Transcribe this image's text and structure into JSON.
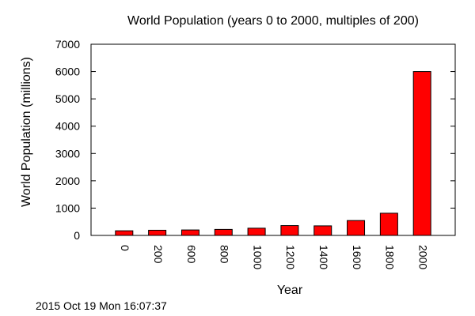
{
  "chart_data": {
    "type": "bar",
    "title": "World Population (years 0 to 2000, multiples of 200)",
    "xlabel": "Year",
    "ylabel": "World Population (millions)",
    "categories": [
      "0",
      "200",
      "600",
      "800",
      "1000",
      "1200",
      "1400",
      "1600",
      "1800",
      "2000"
    ],
    "values": [
      170,
      190,
      200,
      220,
      265,
      360,
      350,
      545,
      813,
      6000
    ],
    "ylim": [
      0,
      7000
    ],
    "yticks": [
      0,
      1000,
      2000,
      3000,
      4000,
      5000,
      6000,
      7000
    ],
    "yticklabels": [
      "0",
      "1000",
      "2000",
      "3000",
      "4000",
      "5000",
      "6000",
      "7000"
    ],
    "bar_color": "#ff0000",
    "grid": false,
    "legend": "none"
  },
  "footer": {
    "timestamp": "2015 Oct 19 Mon 16:07:37"
  }
}
